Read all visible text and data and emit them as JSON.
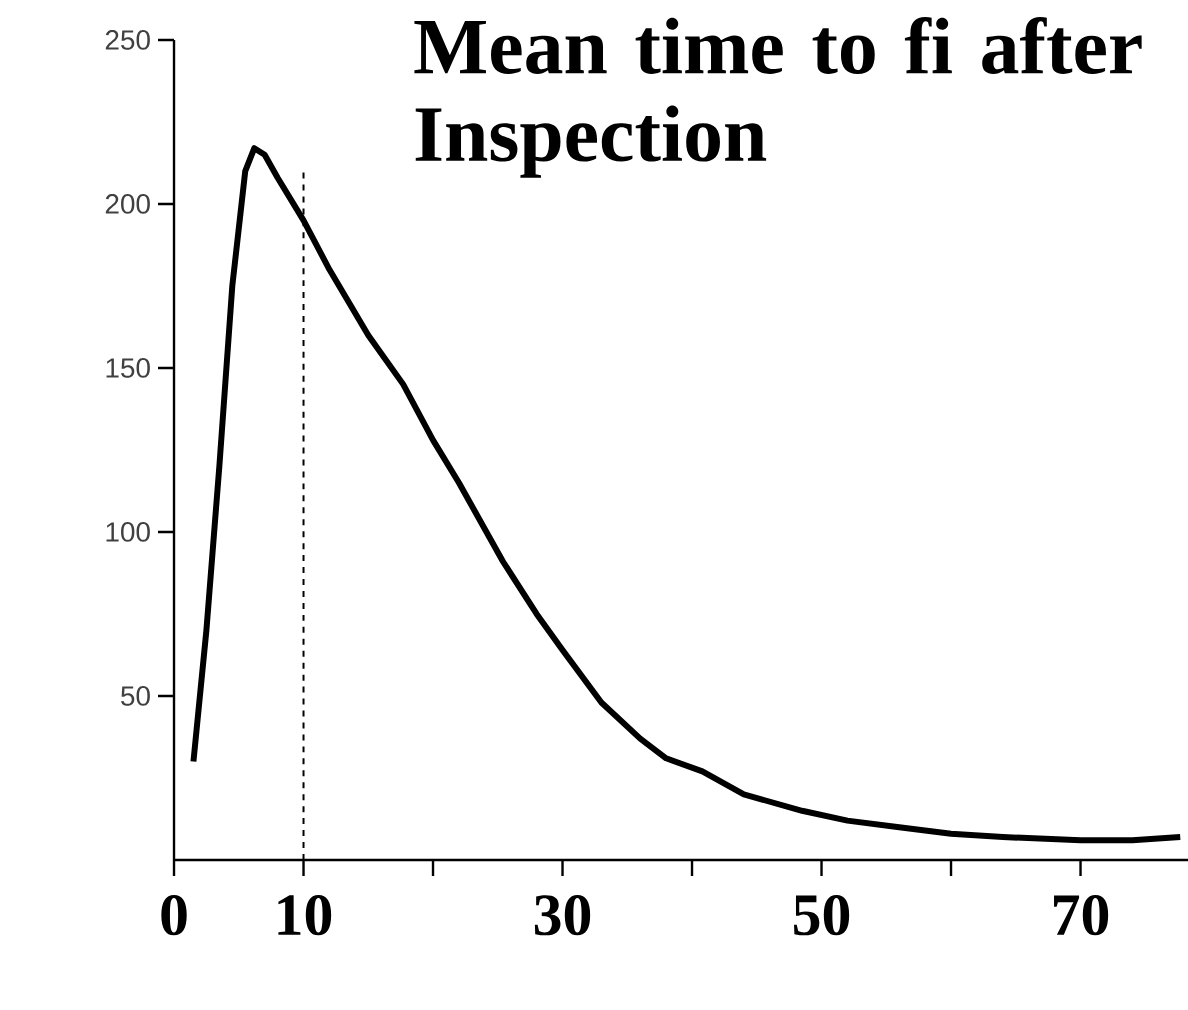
{
  "chart_data": {
    "type": "line",
    "title": "Mean time to fi after Inspection",
    "x": [
      1.5,
      2.5,
      3.5,
      4.5,
      5.5,
      6.2,
      7,
      8,
      10,
      12,
      15,
      17.7,
      20,
      22,
      25.4,
      28,
      30,
      33,
      36,
      38,
      40.8,
      44,
      48.5,
      52,
      56,
      60,
      64,
      70,
      74,
      77.7
    ],
    "series": [
      {
        "color": "#000000",
        "values": [
          30,
          70,
          120,
          175,
          210,
          217,
          215,
          208,
          195,
          180,
          160,
          145,
          128,
          115,
          91,
          75,
          64,
          48,
          37,
          31,
          27,
          20,
          15,
          12,
          10,
          8,
          7,
          6,
          6,
          7
        ]
      }
    ],
    "xlim": [
      0,
      78.3
    ],
    "ylim": [
      0,
      250
    ],
    "xticks": [
      0,
      10,
      {
        "value": 20,
        "label": null
      },
      30,
      {
        "value": 40,
        "label": null
      },
      50,
      {
        "value": 60,
        "label": null
      },
      70
    ],
    "yticks": [
      {
        "value": 50,
        "label": "50"
      },
      {
        "value": 100,
        "label": "100"
      },
      {
        "value": 150,
        "label": "150"
      },
      {
        "value": 200,
        "label": "200"
      },
      {
        "value": 250,
        "label": "250"
      }
    ],
    "ref_lines": [
      {
        "axis": "x",
        "value": 10,
        "line_style": "dashed"
      }
    ],
    "grid": false,
    "marker": "none",
    "line_style": "solid"
  }
}
